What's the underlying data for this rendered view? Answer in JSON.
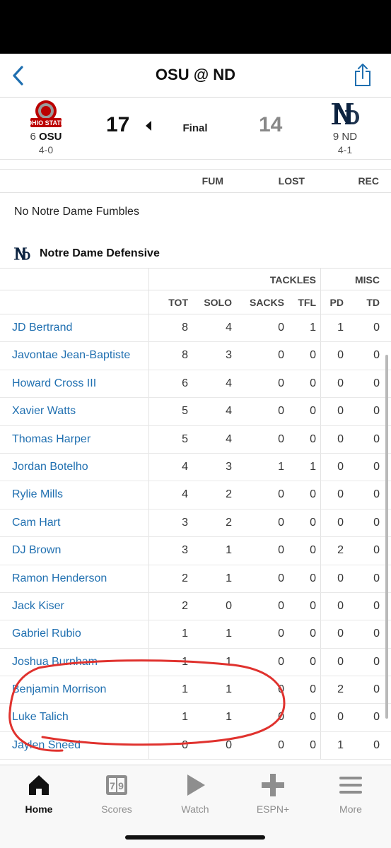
{
  "nav": {
    "title": "OSU @ ND"
  },
  "colors": {
    "link": "#1f6fb0",
    "osu_red": "#bb0000",
    "nd_navy": "#0c2340",
    "annotation": "#e0322e"
  },
  "scoreboard": {
    "away": {
      "rank": "6",
      "abbr": "OSU",
      "record": "4-0",
      "score": "17",
      "logo_text": "OHIO STATE"
    },
    "home": {
      "rank": "9",
      "abbr": "ND",
      "record": "4-1",
      "score": "14"
    },
    "status": "Final"
  },
  "fumbles": {
    "headers": [
      "FUM",
      "LOST",
      "REC"
    ],
    "note": "No Notre Dame Fumbles"
  },
  "defense": {
    "title": "Notre Dame Defensive",
    "groups": {
      "tackles": "TACKLES",
      "misc": "MISC"
    },
    "columns": [
      "TOT",
      "SOLO",
      "SACKS",
      "TFL",
      "PD",
      "TD"
    ],
    "rows": [
      {
        "name": "JD Bertrand",
        "tot": "8",
        "solo": "4",
        "sacks": "0",
        "tfl": "1",
        "pd": "1",
        "td": "0"
      },
      {
        "name": "Javontae Jean-Baptiste",
        "tot": "8",
        "solo": "3",
        "sacks": "0",
        "tfl": "0",
        "pd": "0",
        "td": "0"
      },
      {
        "name": "Howard Cross III",
        "tot": "6",
        "solo": "4",
        "sacks": "0",
        "tfl": "0",
        "pd": "0",
        "td": "0"
      },
      {
        "name": "Xavier Watts",
        "tot": "5",
        "solo": "4",
        "sacks": "0",
        "tfl": "0",
        "pd": "0",
        "td": "0"
      },
      {
        "name": "Thomas Harper",
        "tot": "5",
        "solo": "4",
        "sacks": "0",
        "tfl": "0",
        "pd": "0",
        "td": "0"
      },
      {
        "name": "Jordan Botelho",
        "tot": "4",
        "solo": "3",
        "sacks": "1",
        "tfl": "1",
        "pd": "0",
        "td": "0"
      },
      {
        "name": "Rylie Mills",
        "tot": "4",
        "solo": "2",
        "sacks": "0",
        "tfl": "0",
        "pd": "0",
        "td": "0"
      },
      {
        "name": "Cam Hart",
        "tot": "3",
        "solo": "2",
        "sacks": "0",
        "tfl": "0",
        "pd": "0",
        "td": "0"
      },
      {
        "name": "DJ Brown",
        "tot": "3",
        "solo": "1",
        "sacks": "0",
        "tfl": "0",
        "pd": "2",
        "td": "0"
      },
      {
        "name": "Ramon Henderson",
        "tot": "2",
        "solo": "1",
        "sacks": "0",
        "tfl": "0",
        "pd": "0",
        "td": "0"
      },
      {
        "name": "Jack Kiser",
        "tot": "2",
        "solo": "0",
        "sacks": "0",
        "tfl": "0",
        "pd": "0",
        "td": "0"
      },
      {
        "name": "Gabriel Rubio",
        "tot": "1",
        "solo": "1",
        "sacks": "0",
        "tfl": "0",
        "pd": "0",
        "td": "0"
      },
      {
        "name": "Joshua Burnham",
        "tot": "1",
        "solo": "1",
        "sacks": "0",
        "tfl": "0",
        "pd": "0",
        "td": "0"
      },
      {
        "name": "Benjamin Morrison",
        "tot": "1",
        "solo": "1",
        "sacks": "0",
        "tfl": "0",
        "pd": "2",
        "td": "0"
      },
      {
        "name": "Luke Talich",
        "tot": "1",
        "solo": "1",
        "sacks": "0",
        "tfl": "0",
        "pd": "0",
        "td": "0"
      },
      {
        "name": "Jaylen Sneed",
        "tot": "0",
        "solo": "0",
        "sacks": "0",
        "tfl": "0",
        "pd": "1",
        "td": "0"
      }
    ]
  },
  "tabs": [
    {
      "label": "Home",
      "icon": "home-icon",
      "active": true
    },
    {
      "label": "Scores",
      "icon": "scoreboard-icon",
      "active": false
    },
    {
      "label": "Watch",
      "icon": "play-icon",
      "active": false
    },
    {
      "label": "ESPN+",
      "icon": "plus-icon",
      "active": false
    },
    {
      "label": "More",
      "icon": "menu-icon",
      "active": false
    }
  ]
}
